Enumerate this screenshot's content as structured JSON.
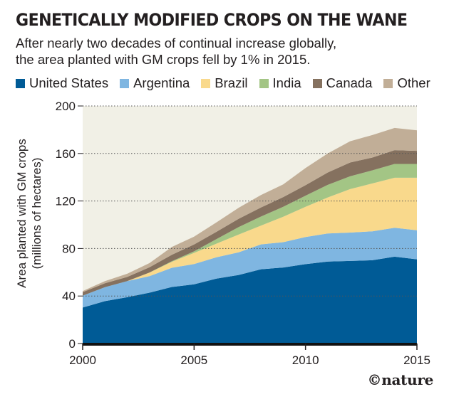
{
  "header": {
    "title": "GENETICALLY MODIFIED CROPS ON THE WANE",
    "subtitle_line1": "After nearly two decades of continual increase globally,",
    "subtitle_line2": "the area planted with GM crops fell by 1% in 2015."
  },
  "credit": "©nature",
  "colors": {
    "background": "#f1f0e6",
    "grid": "#555555"
  },
  "chart_data": {
    "type": "area",
    "stacked": true,
    "title": "GENETICALLY MODIFIED CROPS ON THE WANE",
    "ylabel_line1": "Area planted with GM crops",
    "ylabel_line2": "(millions of hectares)",
    "xlabel": "",
    "xlim": [
      2000,
      2015
    ],
    "ylim": [
      0,
      200
    ],
    "xticks": [
      "2000",
      "2005",
      "2010",
      "2015"
    ],
    "xtick_values": [
      2000,
      2005,
      2010,
      2015
    ],
    "yticks": [
      "0",
      "40",
      "80",
      "120",
      "160",
      "200"
    ],
    "ytick_values": [
      0,
      40,
      80,
      120,
      160,
      200
    ],
    "grid": "horizontal dotted",
    "legend_placement": "top",
    "x": [
      2000,
      2001,
      2002,
      2003,
      2004,
      2005,
      2006,
      2007,
      2008,
      2009,
      2010,
      2011,
      2012,
      2013,
      2014,
      2015
    ],
    "series": [
      {
        "name": "United States",
        "color": "#005b96",
        "values": [
          30.3,
          35.7,
          39.0,
          42.8,
          47.6,
          49.8,
          54.6,
          57.7,
          62.5,
          64.0,
          66.8,
          69.0,
          69.5,
          70.1,
          73.1,
          70.9
        ]
      },
      {
        "name": "Argentina",
        "color": "#7fb6e1",
        "values": [
          10.0,
          11.8,
          13.5,
          13.9,
          16.2,
          17.1,
          18.0,
          19.1,
          21.0,
          21.3,
          22.9,
          23.7,
          23.9,
          24.4,
          24.3,
          24.5
        ]
      },
      {
        "name": "Brazil",
        "color": "#f9d98c",
        "values": [
          0,
          0,
          0,
          3.0,
          5.0,
          9.4,
          11.5,
          15.0,
          15.8,
          21.4,
          25.4,
          30.3,
          36.6,
          40.3,
          42.2,
          44.2
        ]
      },
      {
        "name": "India",
        "color": "#a3c585",
        "values": [
          0,
          0,
          0.05,
          0.1,
          0.5,
          1.3,
          3.8,
          6.2,
          7.6,
          8.4,
          9.4,
          10.6,
          10.8,
          11.0,
          11.6,
          11.6
        ]
      },
      {
        "name": "Canada",
        "color": "#85715f",
        "values": [
          3.0,
          3.2,
          3.5,
          4.4,
          5.4,
          5.8,
          6.1,
          7.0,
          7.6,
          8.2,
          8.8,
          10.4,
          11.6,
          10.8,
          11.6,
          11.0
        ]
      },
      {
        "name": "Other",
        "color": "#c1ae97",
        "values": [
          0.9,
          1.9,
          2.7,
          3.5,
          6.6,
          6.6,
          8.0,
          9.3,
          10.5,
          10.7,
          14.4,
          16.0,
          17.9,
          18.9,
          18.7,
          17.3
        ]
      }
    ]
  }
}
